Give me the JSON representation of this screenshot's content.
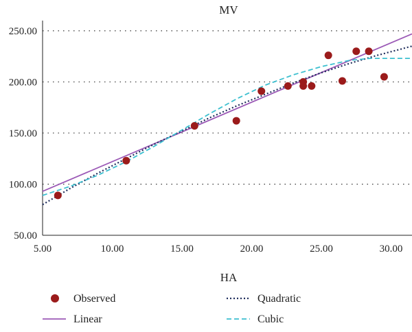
{
  "chart_data": {
    "type": "scatter",
    "title": "MV",
    "xlabel": "HA",
    "ylabel": "",
    "xlim": [
      5,
      31.5
    ],
    "ylim": [
      50,
      260
    ],
    "xticks": [
      5,
      10,
      15,
      20,
      25,
      30
    ],
    "yticks": [
      50,
      100,
      150,
      200,
      250
    ],
    "x_tick_labels": [
      "5.00",
      "10.00",
      "15.00",
      "20.00",
      "25.00",
      "30.00"
    ],
    "y_tick_labels": [
      "50.00",
      "100.00",
      "150.00",
      "200.00",
      "250.00"
    ],
    "grid": "horizontal-dotted",
    "legend_position": "bottom",
    "series": [
      {
        "name": "Observed",
        "kind": "points",
        "color": "#9b1b1b",
        "x": [
          6.1,
          11.0,
          15.9,
          18.9,
          20.7,
          22.6,
          23.7,
          23.7,
          24.3,
          25.5,
          26.5,
          27.5,
          28.4,
          29.5
        ],
        "y": [
          89,
          123,
          157,
          162,
          191,
          196,
          200,
          196,
          196,
          226,
          201,
          230,
          230,
          205
        ]
      },
      {
        "name": "Linear",
        "kind": "line",
        "color": "#9b59b6",
        "dash": "solid",
        "x": [
          5.0,
          31.5
        ],
        "y": [
          93,
          247
        ]
      },
      {
        "name": "Quadratic",
        "kind": "line",
        "color": "#1f2d5c",
        "dash": "dotted",
        "x": [
          5,
          7,
          9,
          11,
          13,
          15,
          17,
          19,
          21,
          23,
          25,
          27,
          29,
          31.5
        ],
        "y": [
          80,
          96,
          111,
          125,
          139,
          152,
          165,
          177,
          188,
          199,
          209,
          218,
          226,
          235
        ]
      },
      {
        "name": "Cubic",
        "kind": "line",
        "color": "#3bbfcf",
        "dash": "dashed",
        "x": [
          5,
          7,
          9,
          11,
          13,
          15,
          17,
          19,
          21,
          23,
          25,
          27,
          28.5,
          31.5
        ],
        "y": [
          89,
          98,
          109,
          122,
          137,
          153,
          169,
          184,
          197,
          207,
          215,
          221,
          223,
          223
        ]
      }
    ]
  }
}
